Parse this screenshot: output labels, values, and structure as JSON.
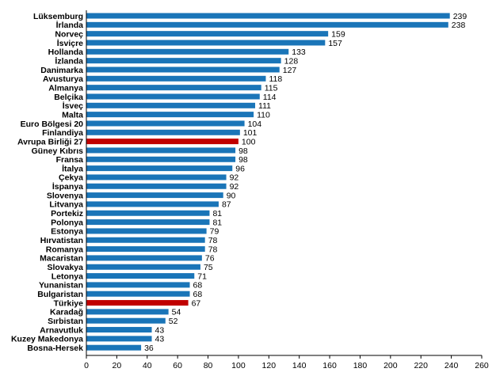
{
  "chart_data": {
    "type": "bar",
    "orientation": "horizontal",
    "title": "",
    "xlabel": "",
    "ylabel": "",
    "xlim": [
      0,
      260
    ],
    "x_ticks": [
      0,
      20,
      40,
      60,
      80,
      100,
      120,
      140,
      160,
      180,
      200,
      220,
      240,
      260
    ],
    "grid": false,
    "legend": "none",
    "colors": {
      "default": "#1a75b8",
      "highlight": "#c00000"
    },
    "highlighted": [
      "Avrupa Birliği 27",
      "Türkiye"
    ],
    "categories": [
      "Lüksemburg",
      "İrlanda",
      "Norveç",
      "İsviçre",
      "Hollanda",
      "İzlanda",
      "Danimarka",
      "Avusturya",
      "Almanya",
      "Belçika",
      "İsveç",
      "Malta",
      "Euro Bölgesi 20",
      "Finlandiya",
      "Avrupa Birliği 27",
      "Güney Kıbrıs",
      "Fransa",
      "İtalya",
      "Çekya",
      "İspanya",
      "Slovenya",
      "Litvanya",
      "Portekiz",
      "Polonya",
      "Estonya",
      "Hırvatistan",
      "Romanya",
      "Macaristan",
      "Slovakya",
      "Letonya",
      "Yunanistan",
      "Bulgaristan",
      "Türkiye",
      "Karadağ",
      "Sırbistan",
      "Arnavutluk",
      "Kuzey Makedonya",
      "Bosna-Hersek"
    ],
    "values": [
      239,
      238,
      159,
      157,
      133,
      128,
      127,
      118,
      115,
      114,
      111,
      110,
      104,
      101,
      100,
      98,
      98,
      96,
      92,
      92,
      90,
      87,
      81,
      81,
      79,
      78,
      78,
      76,
      75,
      71,
      68,
      68,
      67,
      54,
      52,
      43,
      43,
      36
    ]
  }
}
